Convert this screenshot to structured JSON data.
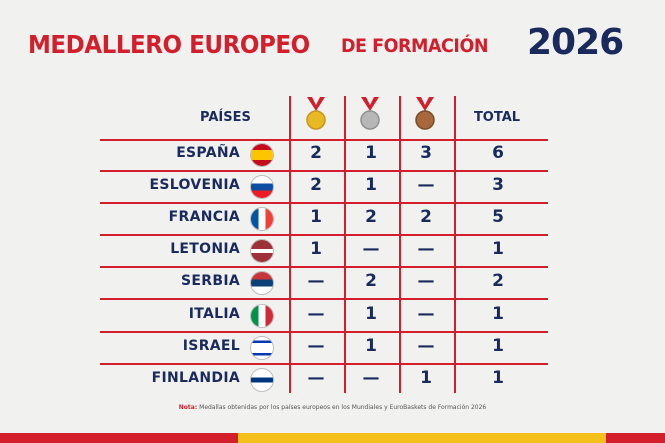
{
  "title": {
    "part1": "MEDALLERO EUROPEO",
    "part2": "DE FORMACIÓN",
    "year": "2026"
  },
  "table": {
    "header": {
      "country": "PAÍSES",
      "total": "TOTAL"
    },
    "rows": [
      [
        "ESPAÑA",
        2,
        1,
        3,
        6
      ],
      [
        "ESLOVENIA",
        2,
        1,
        "—",
        3
      ],
      [
        "FRANCIA",
        1,
        2,
        2,
        5
      ],
      [
        "LETONIA",
        1,
        "—",
        "—",
        1
      ],
      [
        "SERBIA",
        "—",
        2,
        "—",
        2
      ],
      [
        "ITALIA",
        "—",
        1,
        "—",
        1
      ],
      [
        "ISRAEL",
        "—",
        1,
        "—",
        1
      ],
      [
        "FINLANDIA",
        "—",
        "—",
        1,
        1
      ]
    ]
  },
  "note": {
    "label": "Nota:",
    "text": "Medallas obtenidas por los países europeos en los Mundiales y EuroBaskets de Formación 2026"
  }
}
